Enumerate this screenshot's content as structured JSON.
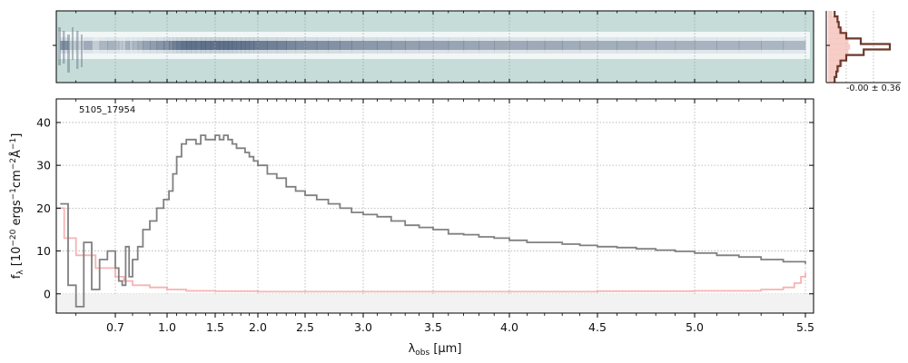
{
  "object_label": "5105_17954",
  "profile_label": "-0.00 ± 0.36",
  "chart_data": {
    "type": "line",
    "xlabel": "λobs [μm]",
    "ylabel": "fλ [10⁻²⁰ ergs⁻¹cm⁻²Å⁻¹]",
    "x_scale": "reciprocal-like (wavelength)",
    "xlim": [
      0.55,
      5.52
    ],
    "ylim": [
      -4.5,
      45.5
    ],
    "x_tick_labels": [
      "0.7",
      "1.0",
      "1.5",
      "2.0",
      "2.5",
      "3.0",
      "3.5",
      "4.0",
      "4.5",
      "5.0",
      "5.5"
    ],
    "y_tick_labels": [
      "0",
      "10",
      "20",
      "30",
      "40"
    ],
    "grid": true,
    "series": [
      {
        "role": "flux",
        "color": "#808080",
        "x": [
          0.56,
          0.58,
          0.6,
          0.62,
          0.64,
          0.66,
          0.68,
          0.7,
          0.72,
          0.74,
          0.76,
          0.78,
          0.8,
          0.83,
          0.86,
          0.9,
          0.94,
          0.98,
          1.02,
          1.06,
          1.1,
          1.15,
          1.2,
          1.25,
          1.3,
          1.35,
          1.4,
          1.45,
          1.5,
          1.55,
          1.6,
          1.65,
          1.7,
          1.75,
          1.8,
          1.85,
          1.9,
          1.95,
          2.0,
          2.1,
          2.2,
          2.3,
          2.4,
          2.5,
          2.6,
          2.7,
          2.8,
          2.9,
          3.0,
          3.1,
          3.2,
          3.3,
          3.4,
          3.5,
          3.6,
          3.7,
          3.8,
          3.9,
          4.0,
          4.1,
          4.2,
          4.3,
          4.4,
          4.5,
          4.6,
          4.7,
          4.8,
          4.9,
          5.0,
          5.1,
          5.2,
          5.3,
          5.4,
          5.5
        ],
        "y": [
          21,
          2,
          -3,
          12,
          1,
          8,
          10,
          6,
          3,
          2,
          11,
          4,
          8,
          11,
          15,
          17,
          20,
          22,
          24,
          28,
          32,
          35,
          36,
          36,
          35,
          37,
          36,
          36,
          37,
          36,
          37,
          36,
          35,
          34,
          34,
          33,
          32,
          31,
          30,
          28,
          27,
          25,
          24,
          23,
          22,
          21,
          20,
          19,
          18.5,
          18,
          17,
          16,
          15.5,
          15,
          14,
          13.8,
          13.3,
          13,
          12.5,
          12,
          12,
          11.6,
          11.3,
          11,
          10.8,
          10.5,
          10.2,
          9.9,
          9.5,
          9,
          8.6,
          8,
          7.5,
          7
        ]
      },
      {
        "role": "error",
        "color": "#f4a6a6",
        "x": [
          0.55,
          0.57,
          0.6,
          0.65,
          0.7,
          0.75,
          0.8,
          0.9,
          1.0,
          1.2,
          1.5,
          2.0,
          2.5,
          3.0,
          3.5,
          4.0,
          4.5,
          5.0,
          5.3,
          5.4,
          5.45,
          5.48,
          5.5
        ],
        "y": [
          20,
          13,
          9,
          6,
          4,
          3,
          2,
          1.5,
          1.0,
          0.7,
          0.6,
          0.5,
          0.5,
          0.5,
          0.5,
          0.5,
          0.6,
          0.7,
          1.0,
          1.5,
          2.5,
          4,
          5
        ]
      }
    ]
  }
}
